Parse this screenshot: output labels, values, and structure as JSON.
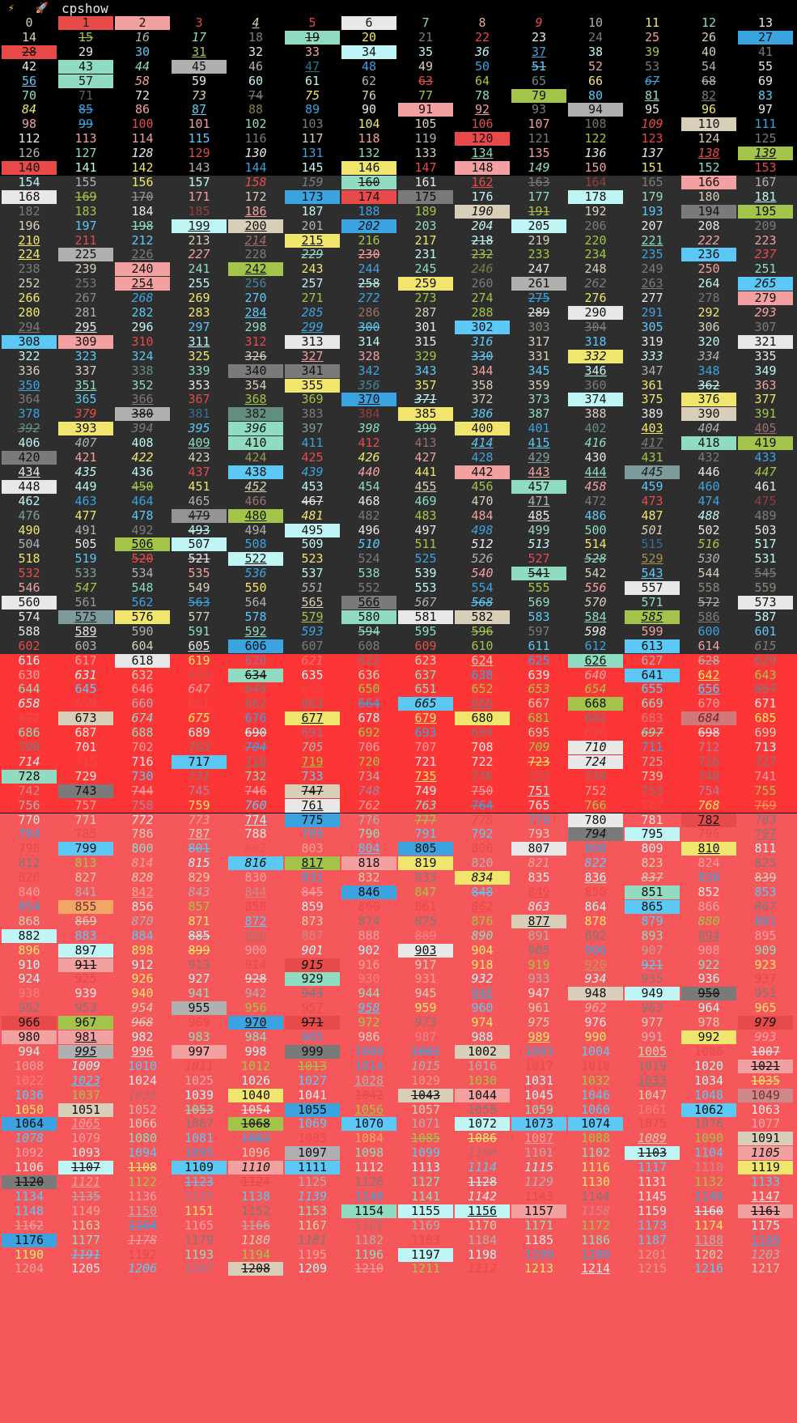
{
  "app": {
    "title": "cpshow",
    "icons": [
      "lightning-icon",
      "rocket-icon"
    ]
  },
  "grid": {
    "start": 0,
    "end": 1217,
    "columns": 14,
    "backgrounds": [
      {
        "from": 0,
        "to": 153,
        "color": "#000000"
      },
      {
        "from": 154,
        "to": 615,
        "color": "#2e2e2e"
      },
      {
        "from": 616,
        "to": 769,
        "color": "#fc3537"
      },
      {
        "from": 770,
        "to": 1217,
        "color": "#f5575a"
      }
    ],
    "palette": [
      "#e8e8e8",
      "#7a7a7a",
      "#e84a4a",
      "#a3c44a",
      "#f0e66e",
      "#3aa3e0",
      "#f2a0a0",
      "#8fdcc0",
      "#d9ceb8",
      "#5cc8f5",
      "#c0f5f5",
      "#b0b0b0"
    ]
  }
}
